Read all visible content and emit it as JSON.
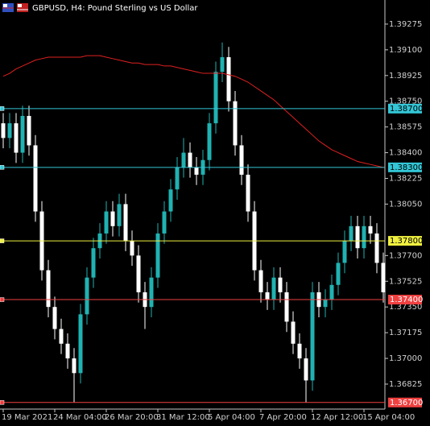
{
  "chart_data": {
    "type": "candlestick",
    "title": "GBPUSD, H4:  Pound Sterling vs US Dollar",
    "categories": [
      "19 Mar 2021",
      null,
      null,
      null,
      null,
      null,
      null,
      null,
      "24 Mar 04:00",
      null,
      null,
      null,
      null,
      null,
      null,
      null,
      "26 Mar 20:00",
      null,
      null,
      null,
      null,
      null,
      null,
      null,
      "31 Mar 12:00",
      null,
      null,
      null,
      null,
      null,
      null,
      null,
      "5 Apr 04:00",
      null,
      null,
      null,
      null,
      null,
      null,
      null,
      "7 Apr 20:00",
      null,
      null,
      null,
      null,
      null,
      null,
      null,
      "12 Apr 12:00",
      null,
      null,
      null,
      null,
      null,
      null,
      null,
      "15 Apr 04:00",
      null,
      null,
      null
    ],
    "open": [
      1.386,
      1.385,
      1.386,
      1.384,
      1.3865,
      1.3845,
      1.38,
      1.376,
      1.3735,
      1.372,
      1.371,
      1.37,
      1.369,
      1.373,
      1.3755,
      1.3775,
      1.3785,
      1.38,
      1.379,
      1.3805,
      1.378,
      1.377,
      1.3745,
      1.3735,
      1.3755,
      1.3785,
      1.38,
      1.3815,
      1.383,
      1.384,
      1.383,
      1.3825,
      1.3835,
      1.386,
      1.3895,
      1.3905,
      1.3875,
      1.3845,
      1.3825,
      1.38,
      1.376,
      1.3745,
      1.374,
      1.3755,
      1.3745,
      1.3725,
      1.371,
      1.37,
      1.3685,
      1.3745,
      1.3735,
      1.374,
      1.375,
      1.3765,
      1.378,
      1.379,
      1.3775,
      1.379,
      1.3785,
      1.3765
    ],
    "high": [
      1.3867,
      1.3867,
      1.3867,
      1.3872,
      1.3872,
      1.3852,
      1.3807,
      1.3767,
      1.3742,
      1.3727,
      1.3717,
      1.3707,
      1.3737,
      1.3762,
      1.3782,
      1.3792,
      1.3807,
      1.3807,
      1.3812,
      1.3812,
      1.3787,
      1.3777,
      1.3752,
      1.3762,
      1.3792,
      1.3807,
      1.3822,
      1.3837,
      1.385,
      1.3847,
      1.3837,
      1.3842,
      1.3867,
      1.3902,
      1.3915,
      1.3912,
      1.3882,
      1.3852,
      1.3832,
      1.3807,
      1.3767,
      1.3752,
      1.3762,
      1.3762,
      1.3752,
      1.3732,
      1.3717,
      1.3707,
      1.3752,
      1.3752,
      1.3747,
      1.3757,
      1.3772,
      1.3787,
      1.3797,
      1.3797,
      1.3797,
      1.3797,
      1.3792,
      1.3772
    ],
    "low": [
      1.3843,
      1.3843,
      1.3833,
      1.3833,
      1.3838,
      1.3793,
      1.3753,
      1.3728,
      1.3713,
      1.3703,
      1.3693,
      1.367,
      1.3683,
      1.3723,
      1.3748,
      1.3768,
      1.3778,
      1.3783,
      1.3783,
      1.3773,
      1.3763,
      1.3738,
      1.372,
      1.3728,
      1.3748,
      1.3778,
      1.3793,
      1.3808,
      1.3823,
      1.3823,
      1.3818,
      1.3818,
      1.3828,
      1.3853,
      1.3888,
      1.3868,
      1.3838,
      1.3818,
      1.3793,
      1.3753,
      1.3738,
      1.3733,
      1.3733,
      1.3738,
      1.3718,
      1.3703,
      1.3693,
      1.367,
      1.3678,
      1.3728,
      1.3728,
      1.3733,
      1.3743,
      1.3758,
      1.3773,
      1.3768,
      1.3768,
      1.3778,
      1.3758,
      1.3738
    ],
    "close": [
      1.385,
      1.386,
      1.384,
      1.3865,
      1.3845,
      1.38,
      1.376,
      1.3735,
      1.372,
      1.371,
      1.37,
      1.369,
      1.373,
      1.3755,
      1.3775,
      1.3785,
      1.38,
      1.379,
      1.3805,
      1.378,
      1.377,
      1.3745,
      1.3735,
      1.3755,
      1.3785,
      1.38,
      1.3815,
      1.383,
      1.384,
      1.383,
      1.3825,
      1.3835,
      1.386,
      1.3895,
      1.3905,
      1.3875,
      1.3845,
      1.3825,
      1.38,
      1.376,
      1.3745,
      1.374,
      1.3755,
      1.3745,
      1.3725,
      1.371,
      1.37,
      1.3685,
      1.3745,
      1.3735,
      1.374,
      1.375,
      1.3765,
      1.378,
      1.379,
      1.3775,
      1.379,
      1.3785,
      1.3765,
      1.3745
    ],
    "up_color": "#20b2b2",
    "down_color": "#ffffff",
    "moving_average": {
      "color": "#e02020",
      "values": [
        1.3892,
        1.3894,
        1.3897,
        1.3899,
        1.3901,
        1.3903,
        1.3904,
        1.3905,
        1.3905,
        1.3905,
        1.3905,
        1.3905,
        1.3905,
        1.3906,
        1.3906,
        1.3906,
        1.3905,
        1.3904,
        1.3903,
        1.3902,
        1.3901,
        1.3901,
        1.39,
        1.39,
        1.39,
        1.3899,
        1.3899,
        1.3898,
        1.3897,
        1.3896,
        1.3895,
        1.3894,
        1.3894,
        1.3894,
        1.3894,
        1.3893,
        1.3892,
        1.389,
        1.3888,
        1.3885,
        1.3882,
        1.3879,
        1.3876,
        1.3872,
        1.3868,
        1.3864,
        1.386,
        1.3856,
        1.3852,
        1.3848,
        1.3845,
        1.3842,
        1.384,
        1.3838,
        1.3836,
        1.3834,
        1.3833,
        1.3832,
        1.3831,
        1.383
      ]
    },
    "levels": [
      {
        "value": 1.387,
        "label": "1.38700",
        "color": "#33c6d6",
        "text_color": "#000000"
      },
      {
        "value": 1.383,
        "label": "1.38300",
        "color": "#33c6d6",
        "text_color": "#000000"
      },
      {
        "value": 1.378,
        "label": "1.37800",
        "color": "#f0f040",
        "text_color": "#000000"
      },
      {
        "value": 1.374,
        "label": "1.37400",
        "color": "#f04040",
        "text_color": "#ffffff"
      },
      {
        "value": 1.367,
        "label": "1.36700",
        "color": "#f04040",
        "text_color": "#ffffff"
      }
    ],
    "ylim": [
      1.36655,
      1.39439
    ],
    "yticks": [
      1.39275,
      {
        "value": 1.391,
        "label": "1.39100"
      },
      1.38925,
      {
        "value": 1.3875,
        "label": "1.38750"
      },
      1.38575,
      {
        "value": 1.384,
        "label": "1.38400"
      },
      1.38225,
      {
        "value": 1.3805,
        "label": "1.38050"
      },
      {
        "value": 1.377,
        "label": "1.37700"
      },
      1.37525,
      {
        "value": 1.3735,
        "label": "1.37350"
      },
      1.37175,
      {
        "value": 1.37,
        "label": "1.37000"
      },
      1.36825
    ]
  }
}
